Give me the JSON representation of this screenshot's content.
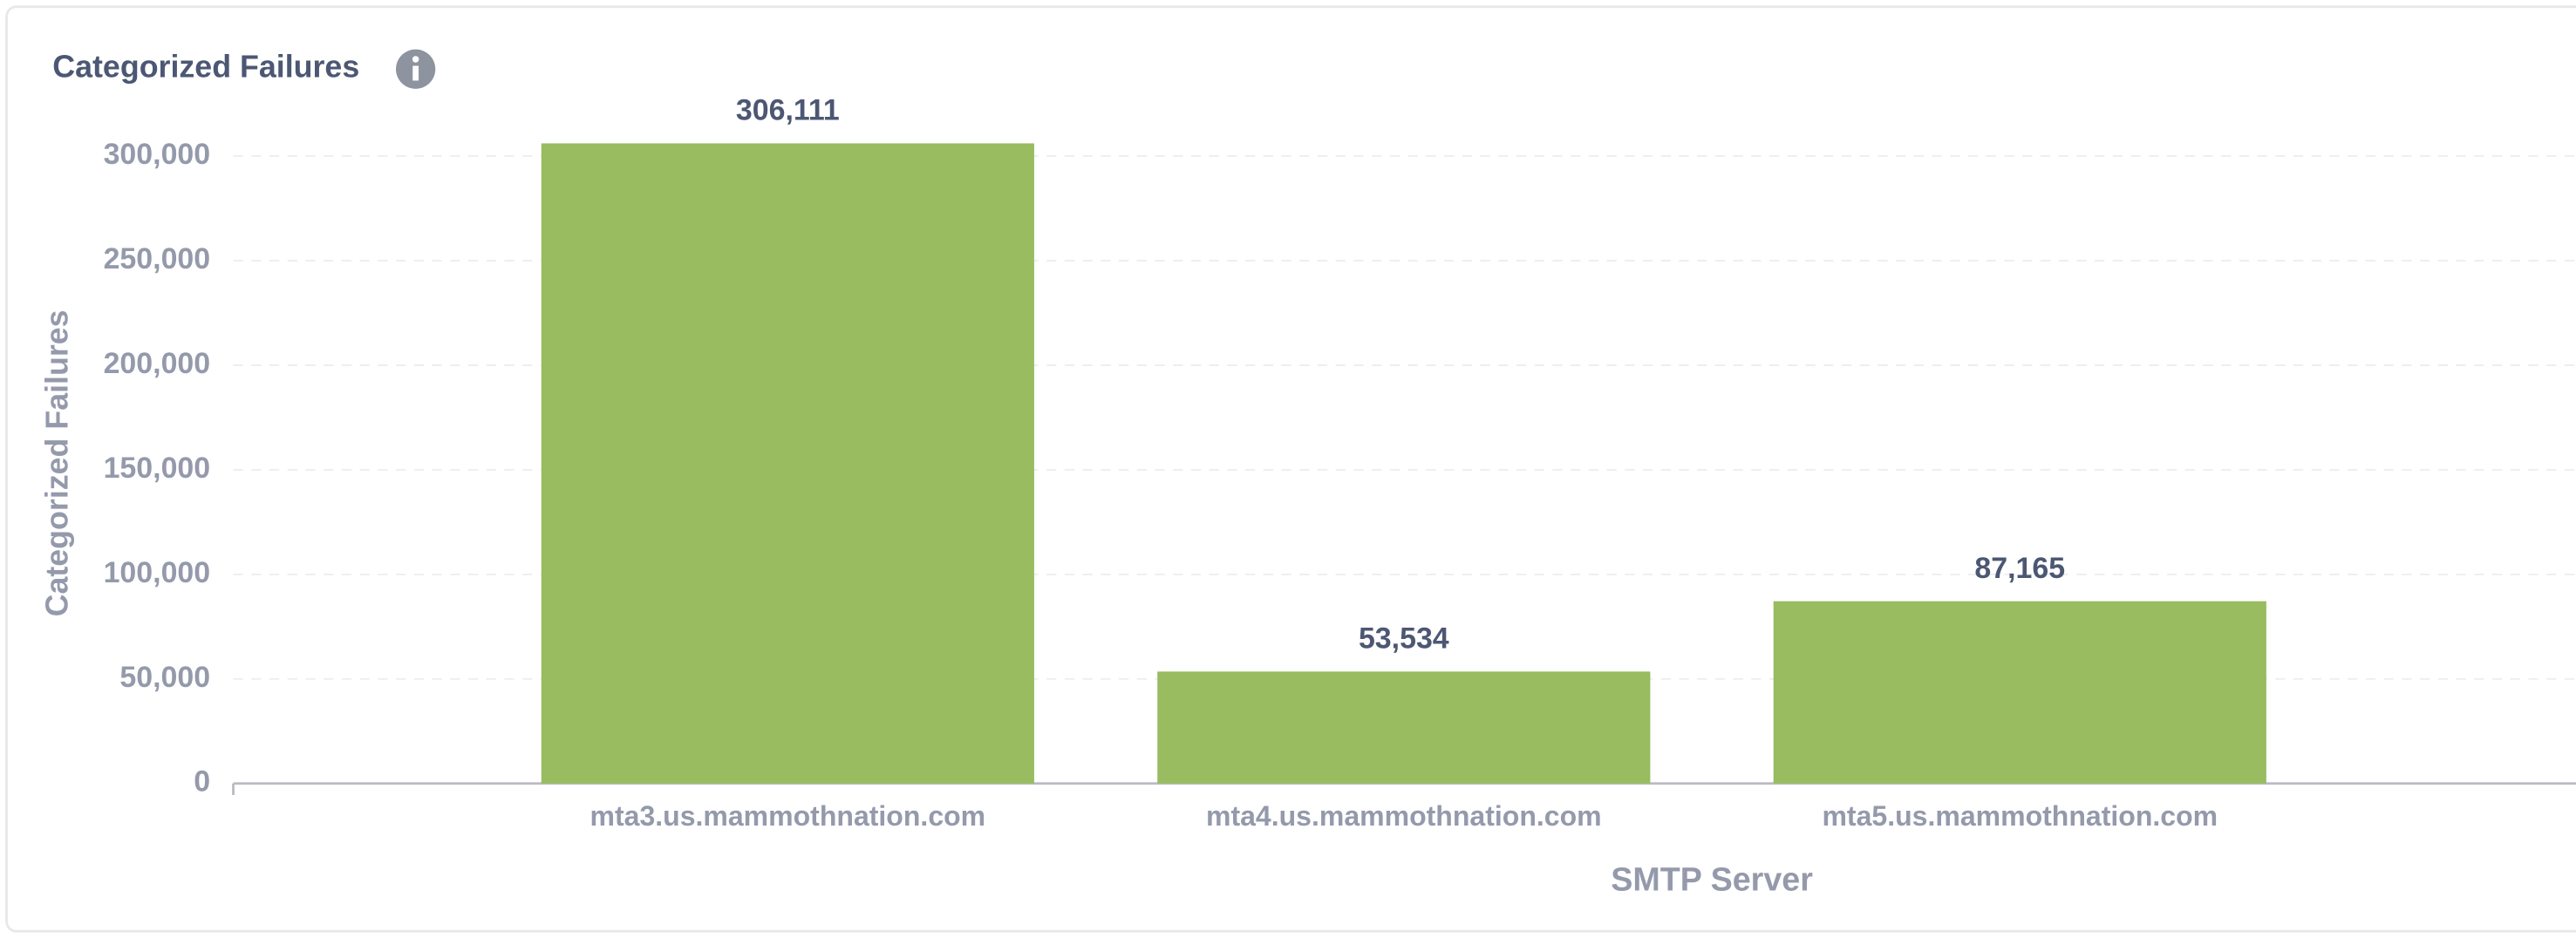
{
  "chart_data": {
    "type": "bar",
    "title": "Categorized Failures",
    "categories": [
      "mta3.us.mammothnation.com",
      "mta4.us.mammothnation.com",
      "mta5.us.mammothnation.com"
    ],
    "values": [
      306111,
      53534,
      87165
    ],
    "value_labels": [
      "306,111",
      "53,534",
      "87,165"
    ],
    "color": "#98bc5f",
    "x_label": "SMTP Server",
    "y_label": "Categorized Failures",
    "ylim": [
      0,
      300000
    ],
    "yticks": [
      0,
      {
        "value": 50000,
        "label": "50,000"
      },
      {
        "value": 100000,
        "label": "100,000"
      },
      {
        "value": 150000,
        "label": "150,000"
      },
      {
        "value": 200000,
        "label": "200,000"
      },
      {
        "value": 250000,
        "label": "250,000"
      },
      {
        "value": 300000,
        "label": "300,000"
      }
    ],
    "grid": true
  }
}
